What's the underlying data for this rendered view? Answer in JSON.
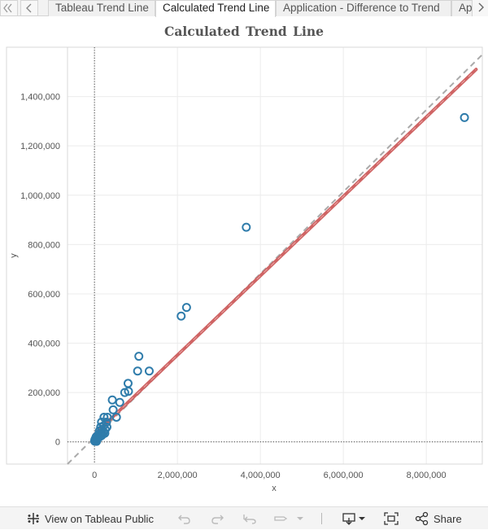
{
  "tabs": {
    "prev_icon": "chevron-left-icon",
    "next_icon": "chevron-right-icon",
    "items": [
      {
        "label": "Tableau Trend Line",
        "active": false
      },
      {
        "label": "Calculated Trend Line",
        "active": true
      },
      {
        "label": "Application - Difference to Trend",
        "active": false
      },
      {
        "label": "Ap",
        "active": false
      }
    ]
  },
  "chart_data": {
    "type": "scatter",
    "title": "Calculated  Trend  Line",
    "xlabel": "x",
    "ylabel": "y",
    "xlim": [
      -650000,
      9350000
    ],
    "ylim": [
      -90000,
      1600000
    ],
    "x_ticks": [
      0,
      2000000,
      4000000,
      6000000,
      8000000
    ],
    "x_tick_labels": [
      "0",
      "2,000,000",
      "4,000,000",
      "6,000,000",
      "8,000,000"
    ],
    "y_ticks": [
      0,
      200000,
      400000,
      600000,
      800000,
      1000000,
      1200000,
      1400000
    ],
    "y_tick_labels": [
      "0",
      "200,000",
      "400,000",
      "600,000",
      "800,000",
      "1,000,000",
      "1,200,000",
      "1,400,000"
    ],
    "grid": true,
    "marker": "hollow-circle",
    "colors": {
      "points": "#2f7cab",
      "trend": "#cd5c5c",
      "diagonal": "#aaaaaa",
      "grid": "#ececec"
    },
    "points": [
      {
        "x": 8920000,
        "y": 1315000
      },
      {
        "x": 3660000,
        "y": 870000
      },
      {
        "x": 2220000,
        "y": 545000
      },
      {
        "x": 2090000,
        "y": 510000
      },
      {
        "x": 1070000,
        "y": 347000
      },
      {
        "x": 1320000,
        "y": 287000
      },
      {
        "x": 1040000,
        "y": 287000
      },
      {
        "x": 810000,
        "y": 237000
      },
      {
        "x": 730000,
        "y": 200000
      },
      {
        "x": 820000,
        "y": 205000
      },
      {
        "x": 430000,
        "y": 170000
      },
      {
        "x": 610000,
        "y": 160000
      },
      {
        "x": 450000,
        "y": 130000
      },
      {
        "x": 530000,
        "y": 100000
      },
      {
        "x": 230000,
        "y": 100000
      },
      {
        "x": 310000,
        "y": 100000
      },
      {
        "x": 170000,
        "y": 80000
      },
      {
        "x": 290000,
        "y": 80000
      },
      {
        "x": 220000,
        "y": 65000
      },
      {
        "x": 150000,
        "y": 60000
      },
      {
        "x": 300000,
        "y": 60000
      },
      {
        "x": 260000,
        "y": 50000
      },
      {
        "x": 180000,
        "y": 50000
      },
      {
        "x": 120000,
        "y": 45000
      },
      {
        "x": 220000,
        "y": 40000
      },
      {
        "x": 140000,
        "y": 35000
      },
      {
        "x": 250000,
        "y": 35000
      },
      {
        "x": 200000,
        "y": 30000
      },
      {
        "x": 100000,
        "y": 30000
      },
      {
        "x": 170000,
        "y": 25000
      },
      {
        "x": 70000,
        "y": 25000
      },
      {
        "x": 120000,
        "y": 20000
      },
      {
        "x": 40000,
        "y": 20000
      },
      {
        "x": 80000,
        "y": 15000
      },
      {
        "x": 20000,
        "y": 12000
      },
      {
        "x": 60000,
        "y": 10000
      },
      {
        "x": 10000,
        "y": 8000
      },
      {
        "x": 30000,
        "y": 5000
      },
      {
        "x": 5000,
        "y": 3000
      },
      {
        "x": 50000,
        "y": 2000
      }
    ],
    "trend_line": {
      "x": [
        0,
        9200000
      ],
      "y": [
        30000,
        1510000
      ]
    },
    "diagonal_line": {
      "x": [
        -650000,
        9350000
      ],
      "y": [
        -90000,
        1570000
      ]
    },
    "zero_lines": true
  },
  "toolbar": {
    "view_label": "View on Tableau Public",
    "view_icon": "tableau-logo-icon",
    "undo_icon": "undo-icon",
    "redo_icon": "redo-icon",
    "revert_icon": "revert-icon",
    "pause_icon": "pause-updates-icon",
    "download_icon": "download-icon",
    "fullscreen_icon": "fullscreen-icon",
    "share_label": "Share",
    "share_icon": "share-icon"
  }
}
